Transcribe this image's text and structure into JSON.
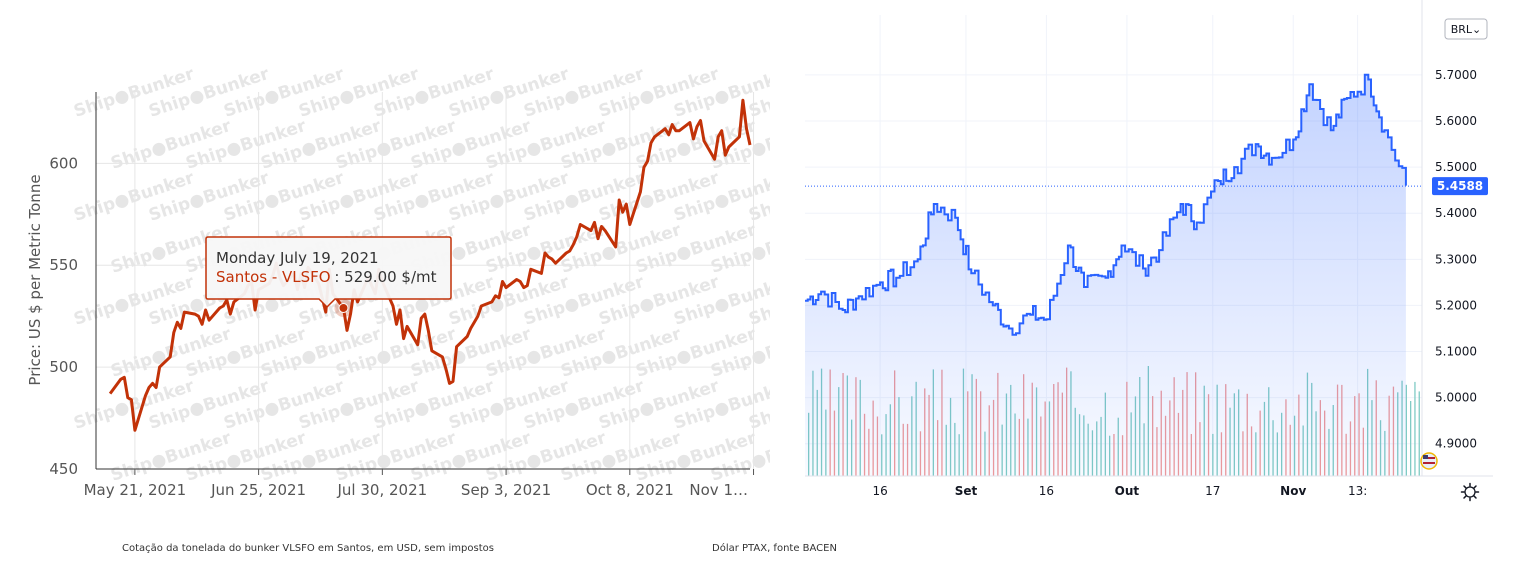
{
  "captions": {
    "left": "Cotação da tonelada do bunker VLSFO em Santos, em USD, sem impostos",
    "right": "Dólar PTAX, fonte BACEN"
  },
  "watermark": "Ship●Bunker",
  "chart_data": [
    {
      "type": "line",
      "ylabel": "Price: US $ per Metric Tonne",
      "xlabel": "",
      "ylim": [
        450,
        635
      ],
      "yticks": [
        450,
        500,
        550,
        600
      ],
      "xticks": [
        "May 21, 2021",
        "Jun 25, 2021",
        "Jul 30, 2021",
        "Sep 3, 2021",
        "Oct 8, 2021",
        "Nov 1…"
      ],
      "grid": true,
      "series": [
        {
          "name": "Santos - VLSFO",
          "color": "#c23208",
          "x": [
            "2021-05-14",
            "2021-05-17",
            "2021-05-18",
            "2021-05-19",
            "2021-05-20",
            "2021-05-21",
            "2021-05-24",
            "2021-05-25",
            "2021-05-26",
            "2021-05-27",
            "2021-05-28",
            "2021-05-31",
            "2021-06-01",
            "2021-06-02",
            "2021-06-03",
            "2021-06-04",
            "2021-06-07",
            "2021-06-08",
            "2021-06-09",
            "2021-06-10",
            "2021-06-11",
            "2021-06-14",
            "2021-06-15",
            "2021-06-16",
            "2021-06-17",
            "2021-06-18",
            "2021-06-21",
            "2021-06-22",
            "2021-06-23",
            "2021-06-24",
            "2021-06-25",
            "2021-06-28",
            "2021-06-29",
            "2021-06-30",
            "2021-07-01",
            "2021-07-02",
            "2021-07-05",
            "2021-07-06",
            "2021-07-07",
            "2021-07-08",
            "2021-07-09",
            "2021-07-12",
            "2021-07-13",
            "2021-07-14",
            "2021-07-15",
            "2021-07-16",
            "2021-07-19",
            "2021-07-20",
            "2021-07-21",
            "2021-07-22",
            "2021-07-23",
            "2021-07-26",
            "2021-07-27",
            "2021-07-28",
            "2021-07-29",
            "2021-07-30",
            "2021-08-02",
            "2021-08-03",
            "2021-08-04",
            "2021-08-05",
            "2021-08-06",
            "2021-08-09",
            "2021-08-10",
            "2021-08-11",
            "2021-08-12",
            "2021-08-13",
            "2021-08-16",
            "2021-08-17",
            "2021-08-18",
            "2021-08-19",
            "2021-08-20",
            "2021-08-23",
            "2021-08-24",
            "2021-08-25",
            "2021-08-26",
            "2021-08-27",
            "2021-08-30",
            "2021-08-31",
            "2021-09-01",
            "2021-09-02",
            "2021-09-03",
            "2021-09-06",
            "2021-09-07",
            "2021-09-08",
            "2021-09-09",
            "2021-09-10",
            "2021-09-13",
            "2021-09-14",
            "2021-09-15",
            "2021-09-16",
            "2021-09-17",
            "2021-09-20",
            "2021-09-21",
            "2021-09-22",
            "2021-09-23",
            "2021-09-24",
            "2021-09-27",
            "2021-09-28",
            "2021-09-29",
            "2021-09-30",
            "2021-10-01",
            "2021-10-04",
            "2021-10-05",
            "2021-10-06",
            "2021-10-07",
            "2021-10-08",
            "2021-10-11",
            "2021-10-12",
            "2021-10-13",
            "2021-10-14",
            "2021-10-15",
            "2021-10-18",
            "2021-10-19",
            "2021-10-20",
            "2021-10-21",
            "2021-10-22",
            "2021-10-25",
            "2021-10-26",
            "2021-10-27",
            "2021-10-28",
            "2021-10-29",
            "2021-11-01",
            "2021-11-02",
            "2021-11-03",
            "2021-11-04",
            "2021-11-05",
            "2021-11-08",
            "2021-11-09",
            "2021-11-10",
            "2021-11-11"
          ],
          "values": [
            487,
            494,
            495,
            485,
            484,
            469,
            486,
            490,
            492,
            490,
            500,
            505,
            517,
            522,
            519,
            527,
            526,
            525,
            521,
            528,
            523,
            529,
            530,
            533,
            526,
            532,
            536,
            540,
            542,
            528,
            538,
            541,
            545,
            551,
            544,
            540,
            546,
            538,
            546,
            539,
            549,
            541,
            534,
            527,
            548,
            536,
            529,
            518,
            526,
            538,
            532,
            544,
            540,
            536,
            548,
            542,
            530,
            521,
            528,
            514,
            520,
            511,
            524,
            526,
            518,
            508,
            505,
            499,
            492,
            493,
            510,
            515,
            519,
            522,
            525,
            530,
            532,
            535,
            534,
            542,
            539,
            543,
            542,
            539,
            540,
            548,
            546,
            556,
            554,
            553,
            551,
            556,
            557,
            560,
            564,
            570,
            567,
            571,
            563,
            569,
            567,
            559,
            582,
            576,
            580,
            570,
            586,
            598,
            601,
            610,
            613,
            617,
            614,
            619,
            616,
            616,
            620,
            612,
            618,
            621,
            611,
            602,
            613,
            616,
            604,
            608,
            613,
            631,
            617,
            609
          ]
        }
      ],
      "tooltip": {
        "date": "Monday July 19, 2021",
        "series": "Santos - VLSFO",
        "value_text": ": 529.00 $/mt",
        "value": 529.0
      }
    },
    {
      "type": "line",
      "currency": "BRL",
      "currency_menu": "BRL⌄",
      "ylim": [
        4.83,
        5.83
      ],
      "yticks": [
        "5.7000",
        "5.6000",
        "5.5000",
        "5.4000",
        "5.3000",
        "5.2000",
        "5.1000",
        "5.0000",
        "4.9000"
      ],
      "xticks": [
        "16",
        "Set",
        "16",
        "Out",
        "17",
        "Nov",
        "13:"
      ],
      "last_value": "5.4588",
      "series": [
        {
          "name": "BRL",
          "color": "#2962ff",
          "x": [
            "2021-08-02",
            "2021-08-05",
            "2021-08-09",
            "2021-08-12",
            "2021-08-16",
            "2021-08-19",
            "2021-08-23",
            "2021-08-26",
            "2021-08-30",
            "2021-09-02",
            "2021-09-06",
            "2021-09-09",
            "2021-09-13",
            "2021-09-16",
            "2021-09-20",
            "2021-09-23",
            "2021-09-27",
            "2021-09-30",
            "2021-10-04",
            "2021-10-07",
            "2021-10-11",
            "2021-10-14",
            "2021-10-18",
            "2021-10-21",
            "2021-10-25",
            "2021-10-28",
            "2021-11-01",
            "2021-11-04",
            "2021-11-08",
            "2021-11-11",
            "2021-11-15",
            "2021-11-18",
            "2021-11-22"
          ],
          "values": [
            5.21,
            5.23,
            5.19,
            5.22,
            5.25,
            5.26,
            5.3,
            5.42,
            5.39,
            5.27,
            5.2,
            5.15,
            5.18,
            5.17,
            5.33,
            5.24,
            5.26,
            5.33,
            5.28,
            5.32,
            5.42,
            5.38,
            5.47,
            5.5,
            5.55,
            5.52,
            5.56,
            5.68,
            5.58,
            5.65,
            5.69,
            5.58,
            5.46
          ]
        }
      ]
    }
  ]
}
